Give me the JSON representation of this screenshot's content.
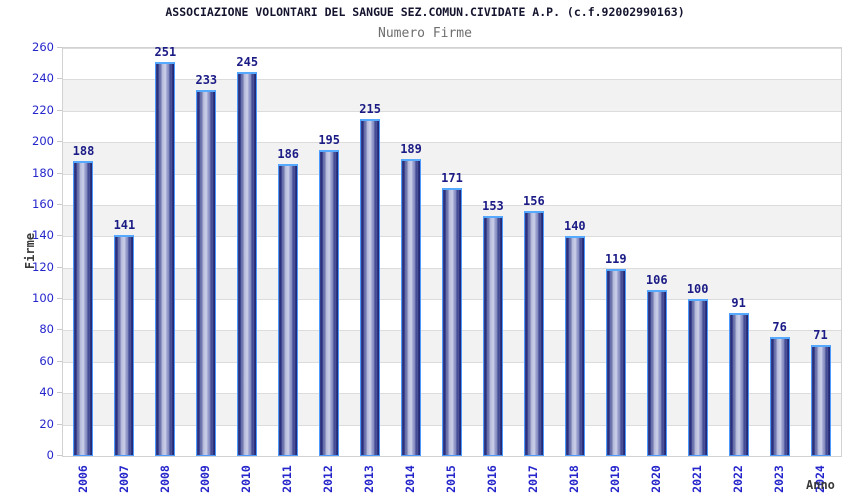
{
  "header": {
    "title": "ASSOCIAZIONE VOLONTARI DEL SANGUE SEZ.COMUN.CIVIDATE A.P. (c.f.92002990163)",
    "subtitle": "Numero Firme"
  },
  "chart_data": {
    "type": "bar",
    "title": "ASSOCIAZIONE VOLONTARI DEL SANGUE SEZ.COMUN.CIVIDATE A.P. (c.f.92002990163)",
    "subtitle": "Numero Firme",
    "xlabel": "Anno",
    "ylabel": "Firme",
    "categories": [
      "2006",
      "2007",
      "2008",
      "2009",
      "2010",
      "2011",
      "2012",
      "2013",
      "2014",
      "2015",
      "2016",
      "2017",
      "2018",
      "2019",
      "2020",
      "2021",
      "2022",
      "2023",
      "2024"
    ],
    "values": [
      188,
      141,
      251,
      233,
      245,
      186,
      195,
      215,
      189,
      171,
      153,
      156,
      140,
      119,
      106,
      100,
      91,
      76,
      71
    ],
    "ylim": [
      0,
      260
    ],
    "ytick_step": 20,
    "legend_position": "none",
    "grid": "horizontal gridlines with alternating white/gray bands every 20 units",
    "bar_labels_shown": true,
    "colors": {
      "bar_dark": "#1f2470",
      "bar_highlight": "#c9cde7",
      "bar_outline": "#4d9aff",
      "tick_text": "#2525cc",
      "value_text": "#1b1b86",
      "title_text": "#14142e",
      "subtitle_text": "#6e6e6e",
      "axis_label_text": "#3a3a3a",
      "band_gray": "#f2f2f2",
      "gridline": "#dcdcdc",
      "plot_border": "#d2d2d2",
      "background": "#ffffff"
    }
  }
}
